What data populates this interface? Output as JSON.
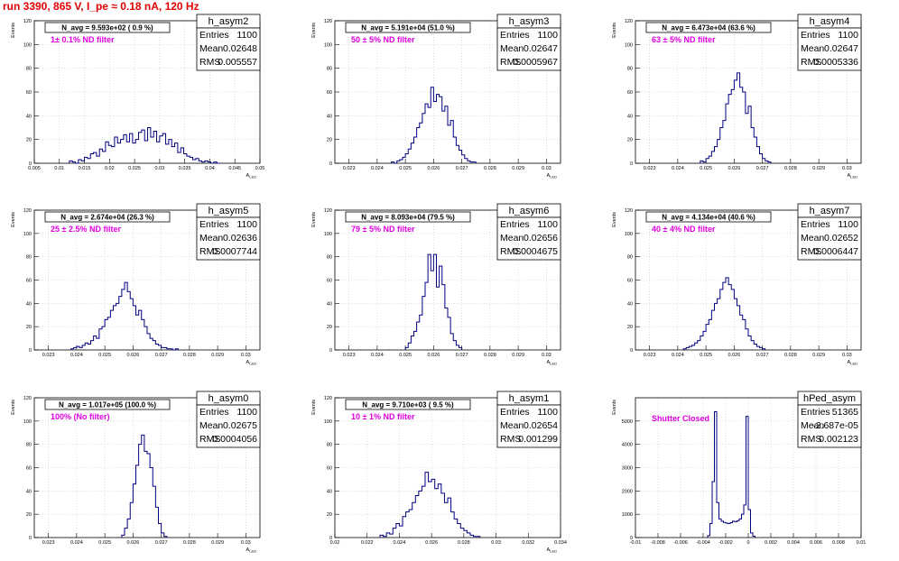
{
  "header": {
    "title": "run 3390,   865 V, I_pe ≈ 0.18 nA, 120 Hz"
  },
  "colors": {
    "title": "#e00000",
    "histogram": "#000080",
    "annotation": "#e000e0",
    "grid": "#c8c8c8"
  },
  "chart_data": [
    {
      "type": "histogram",
      "name": "h_asym2",
      "ylabel": "Events",
      "xlabel": "A_LED",
      "navg": "N_avg = 9.593e+02 ( 0.9 %)",
      "filter": "1± 0.1% ND filter",
      "stats": [
        [
          "Entries",
          "1100"
        ],
        [
          "Mean",
          "0.02648"
        ],
        [
          "RMS",
          "0.005557"
        ]
      ],
      "xlim": [
        0.005,
        0.05
      ],
      "ylim": [
        0,
        120
      ],
      "xticks": [
        "0.005",
        "0.01",
        "0.015",
        "0.02",
        "0.025",
        "0.03",
        "0.035",
        "0.04",
        "0.045",
        "0.05"
      ],
      "xtick_values": [
        0.005,
        0.01,
        0.015,
        0.02,
        0.025,
        0.03,
        0.035,
        0.04,
        0.045,
        0.05
      ],
      "yticks": [
        0,
        20,
        40,
        60,
        80,
        100,
        120
      ],
      "bins": {
        "start": 0.012,
        "width": 0.0006,
        "values": [
          2,
          1,
          0,
          3,
          2,
          5,
          4,
          8,
          9,
          6,
          12,
          10,
          18,
          15,
          14,
          22,
          17,
          20,
          24,
          18,
          25,
          17,
          20,
          26,
          28,
          19,
          30,
          22,
          27,
          18,
          23,
          25,
          16,
          20,
          14,
          17,
          9,
          13,
          8,
          6,
          5,
          3,
          4,
          2,
          1,
          2,
          1,
          0,
          1,
          0
        ]
      }
    },
    {
      "type": "histogram",
      "name": "h_asym3",
      "ylabel": "Events",
      "xlabel": "A_LED",
      "navg": "N_avg = 5.191e+04 (51.0 %)",
      "filter": "50 ± 5% ND filter",
      "stats": [
        [
          "Entries",
          "1100"
        ],
        [
          "Mean",
          "0.02647"
        ],
        [
          "RMS",
          "0.0005967"
        ]
      ],
      "xlim": [
        0.0225,
        0.0305
      ],
      "ylim": [
        0,
        120
      ],
      "xticks": [
        "0.023",
        "0.024",
        "0.025",
        "0.026",
        "0.027",
        "0.028",
        "0.029",
        "0.03"
      ],
      "xtick_values": [
        0.023,
        0.024,
        0.025,
        0.026,
        0.027,
        0.028,
        0.029,
        0.03
      ],
      "yticks": [
        0,
        20,
        40,
        60,
        80,
        100,
        120
      ],
      "bins": {
        "start": 0.0245,
        "width": 0.0001,
        "values": [
          1,
          0,
          2,
          3,
          5,
          8,
          12,
          17,
          22,
          30,
          34,
          42,
          50,
          47,
          64,
          52,
          58,
          56,
          44,
          48,
          32,
          36,
          22,
          15,
          11,
          7,
          4,
          2,
          1,
          1
        ]
      }
    },
    {
      "type": "histogram",
      "name": "h_asym4",
      "ylabel": "Events",
      "xlabel": "A_LED",
      "navg": "N_avg = 6.473e+04 (63.6 %)",
      "filter": "63 ± 5% ND filter",
      "stats": [
        [
          "Entries",
          "1100"
        ],
        [
          "Mean",
          "0.02647"
        ],
        [
          "RMS",
          "0.0005336"
        ]
      ],
      "xlim": [
        0.0225,
        0.0305
      ],
      "ylim": [
        0,
        120
      ],
      "xticks": [
        "0.023",
        "0.024",
        "0.025",
        "0.026",
        "0.027",
        "0.028",
        "0.029",
        "0.03"
      ],
      "xtick_values": [
        0.023,
        0.024,
        0.025,
        0.026,
        0.027,
        0.028,
        0.029,
        0.03
      ],
      "yticks": [
        0,
        20,
        40,
        60,
        80,
        100,
        120
      ],
      "bins": {
        "start": 0.0248,
        "width": 0.0001,
        "values": [
          2,
          1,
          4,
          6,
          10,
          14,
          20,
          30,
          36,
          50,
          58,
          62,
          70,
          76,
          64,
          60,
          42,
          48,
          30,
          22,
          14,
          8,
          4,
          2,
          1
        ]
      }
    },
    {
      "type": "histogram",
      "name": "h_asym5",
      "ylabel": "Events",
      "xlabel": "A_LED",
      "navg": "N_avg = 2.674e+04 (26.3 %)",
      "filter": "25 ± 2.5% ND filter",
      "stats": [
        [
          "Entries",
          "1100"
        ],
        [
          "Mean",
          "0.02636"
        ],
        [
          "RMS",
          "0.0007744"
        ]
      ],
      "xlim": [
        0.0225,
        0.0305
      ],
      "ylim": [
        0,
        120
      ],
      "xticks": [
        "0.023",
        "0.024",
        "0.025",
        "0.026",
        "0.027",
        "0.028",
        "0.029",
        "0.03"
      ],
      "xtick_values": [
        0.023,
        0.024,
        0.025,
        0.026,
        0.027,
        0.028,
        0.029,
        0.03
      ],
      "yticks": [
        0,
        20,
        40,
        60,
        80,
        100,
        120
      ],
      "bins": {
        "start": 0.0238,
        "width": 0.0001,
        "values": [
          1,
          2,
          3,
          2,
          4,
          6,
          5,
          8,
          12,
          10,
          18,
          20,
          26,
          28,
          34,
          38,
          40,
          46,
          52,
          58,
          50,
          44,
          38,
          30,
          34,
          26,
          20,
          14,
          10,
          8,
          5,
          4,
          2,
          2,
          1,
          1,
          0,
          1
        ]
      }
    },
    {
      "type": "histogram",
      "name": "h_asym6",
      "ylabel": "Events",
      "xlabel": "A_LED",
      "navg": "N_avg = 8.093e+04 (79.5 %)",
      "filter": "79 ± 5% ND filter",
      "stats": [
        [
          "Entries",
          "1100"
        ],
        [
          "Mean",
          "0.02656"
        ],
        [
          "RMS",
          "0.0004675"
        ]
      ],
      "xlim": [
        0.0225,
        0.0305
      ],
      "ylim": [
        0,
        120
      ],
      "xticks": [
        "0.023",
        "0.024",
        "0.025",
        "0.026",
        "0.027",
        "0.028",
        "0.029",
        "0.03"
      ],
      "xtick_values": [
        0.023,
        0.024,
        0.025,
        0.026,
        0.027,
        0.028,
        0.029,
        0.03
      ],
      "yticks": [
        0,
        20,
        40,
        60,
        80,
        100,
        120
      ],
      "bins": {
        "start": 0.025,
        "width": 0.0001,
        "values": [
          2,
          6,
          12,
          16,
          24,
          30,
          46,
          58,
          82,
          68,
          82,
          54,
          72,
          56,
          36,
          28,
          14,
          8,
          4,
          2
        ]
      }
    },
    {
      "type": "histogram",
      "name": "h_asym7",
      "ylabel": "Events",
      "xlabel": "A_LED",
      "navg": "N_avg = 4.134e+04 (40.6 %)",
      "filter": "40 ± 4% ND filter",
      "stats": [
        [
          "Entries",
          "1100"
        ],
        [
          "Mean",
          "0.02652"
        ],
        [
          "RMS",
          "0.0006447"
        ]
      ],
      "xlim": [
        0.0225,
        0.0305
      ],
      "ylim": [
        0,
        120
      ],
      "xticks": [
        "0.023",
        "0.024",
        "0.025",
        "0.026",
        "0.027",
        "0.028",
        "0.029",
        "0.03"
      ],
      "xtick_values": [
        0.023,
        0.024,
        0.025,
        0.026,
        0.027,
        0.028,
        0.029,
        0.03
      ],
      "yticks": [
        0,
        20,
        40,
        60,
        80,
        100,
        120
      ],
      "bins": {
        "start": 0.0242,
        "width": 0.0001,
        "values": [
          1,
          2,
          3,
          4,
          6,
          8,
          12,
          16,
          22,
          26,
          34,
          40,
          44,
          52,
          58,
          62,
          56,
          52,
          44,
          38,
          30,
          26,
          18,
          12,
          8,
          5,
          3,
          2,
          1
        ]
      }
    },
    {
      "type": "histogram",
      "name": "h_asym0",
      "ylabel": "Events",
      "xlabel": "A_LED",
      "navg": "N_avg = 1.017e+05 (100.0 %)",
      "filter": "100% (No filter)",
      "stats": [
        [
          "Entries",
          "1100"
        ],
        [
          "Mean",
          "0.02675"
        ],
        [
          "RMS",
          "0.0004056"
        ]
      ],
      "xlim": [
        0.0225,
        0.0305
      ],
      "ylim": [
        0,
        120
      ],
      "xticks": [
        "0.023",
        "0.024",
        "0.025",
        "0.026",
        "0.027",
        "0.028",
        "0.029",
        "0.03"
      ],
      "xtick_values": [
        0.023,
        0.024,
        0.025,
        0.026,
        0.027,
        0.028,
        0.029,
        0.03
      ],
      "yticks": [
        0,
        20,
        40,
        60,
        80,
        100,
        120
      ],
      "bins": {
        "start": 0.0256,
        "width": 0.0001,
        "values": [
          2,
          8,
          16,
          30,
          46,
          62,
          80,
          88,
          74,
          72,
          60,
          44,
          26,
          12,
          4,
          1
        ]
      }
    },
    {
      "type": "histogram",
      "name": "h_asym1",
      "ylabel": "Events",
      "xlabel": "A_LED",
      "navg": "N_avg = 9.710e+03 ( 9.5 %)",
      "filter": "10 ± 1% ND filter",
      "stats": [
        [
          "Entries",
          "1100"
        ],
        [
          "Mean",
          "0.02654"
        ],
        [
          "RMS",
          "0.001299"
        ]
      ],
      "xlim": [
        0.02,
        0.034
      ],
      "ylim": [
        0,
        120
      ],
      "xticks": [
        "0.02",
        "0.022",
        "0.024",
        "0.026",
        "0.028",
        "0.03",
        "0.032",
        "0.034"
      ],
      "xtick_values": [
        0.02,
        0.022,
        0.024,
        0.026,
        0.028,
        0.03,
        0.032,
        0.034
      ],
      "yticks": [
        0,
        20,
        40,
        60,
        80,
        100,
        120
      ],
      "bins": {
        "start": 0.0228,
        "width": 0.0002,
        "values": [
          2,
          1,
          4,
          3,
          8,
          12,
          10,
          18,
          22,
          24,
          30,
          36,
          40,
          44,
          56,
          48,
          50,
          42,
          46,
          38,
          30,
          34,
          22,
          16,
          12,
          8,
          6,
          4,
          2,
          1,
          1
        ]
      }
    },
    {
      "type": "histogram",
      "name": "hPed_asym",
      "ylabel": "Events",
      "xlabel": "",
      "navg": "",
      "filter": "Shutter Closed",
      "stats": [
        [
          "Entries",
          "51365"
        ],
        [
          "Mean",
          "-2.687e-05"
        ],
        [
          "RMS",
          "0.002123"
        ]
      ],
      "xlim": [
        -0.01,
        0.01
      ],
      "ylim": [
        0,
        6000
      ],
      "xticks": [
        "-0.01",
        "-0.008",
        "-0.006",
        "-0.004",
        "-0.002",
        "0",
        "0.002",
        "0.004",
        "0.006",
        "0.008",
        "0.01"
      ],
      "xtick_values": [
        -0.01,
        -0.008,
        -0.006,
        -0.004,
        -0.002,
        0,
        0.002,
        0.004,
        0.006,
        0.008,
        0.01
      ],
      "yticks": [
        0,
        1000,
        2000,
        3000,
        4000,
        5000
      ],
      "bins": {
        "start": -0.0036,
        "width": 0.0002,
        "values": [
          80,
          600,
          2400,
          5400,
          1500,
          800,
          700,
          650,
          620,
          600,
          640,
          700,
          680,
          720,
          800,
          1000,
          1400,
          5200,
          1200,
          200,
          60
        ]
      }
    }
  ]
}
